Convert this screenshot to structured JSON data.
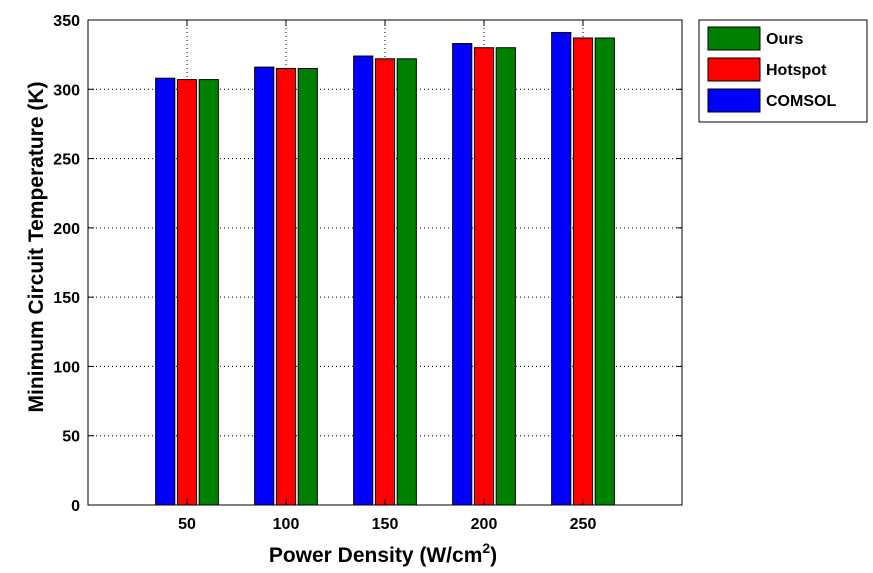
{
  "chart_data": {
    "type": "bar",
    "xlabel": "Power Density (W/cm",
    "xlabel_superscript": "2",
    "xlabel_suffix": ")",
    "ylabel": "Minimum Circuit Temperature (K)",
    "categories": [
      "50",
      "100",
      "150",
      "200",
      "250"
    ],
    "ylim": [
      0,
      350
    ],
    "yticks": [
      "0",
      "50",
      "100",
      "150",
      "200",
      "250",
      "300",
      "350"
    ],
    "grid": true,
    "legend_position": "outside-top-right",
    "series": [
      {
        "name": "COMSOL",
        "color": "#0000ff",
        "values": [
          308,
          316,
          324,
          333,
          341
        ]
      },
      {
        "name": "Hotspot",
        "color": "#ff0000",
        "values": [
          307,
          315,
          322,
          330,
          337
        ]
      },
      {
        "name": "Ours",
        "color": "#008000",
        "values": [
          307,
          315,
          322,
          330,
          337
        ]
      }
    ],
    "legend_order": [
      "Ours",
      "Hotspot",
      "COMSOL"
    ]
  }
}
